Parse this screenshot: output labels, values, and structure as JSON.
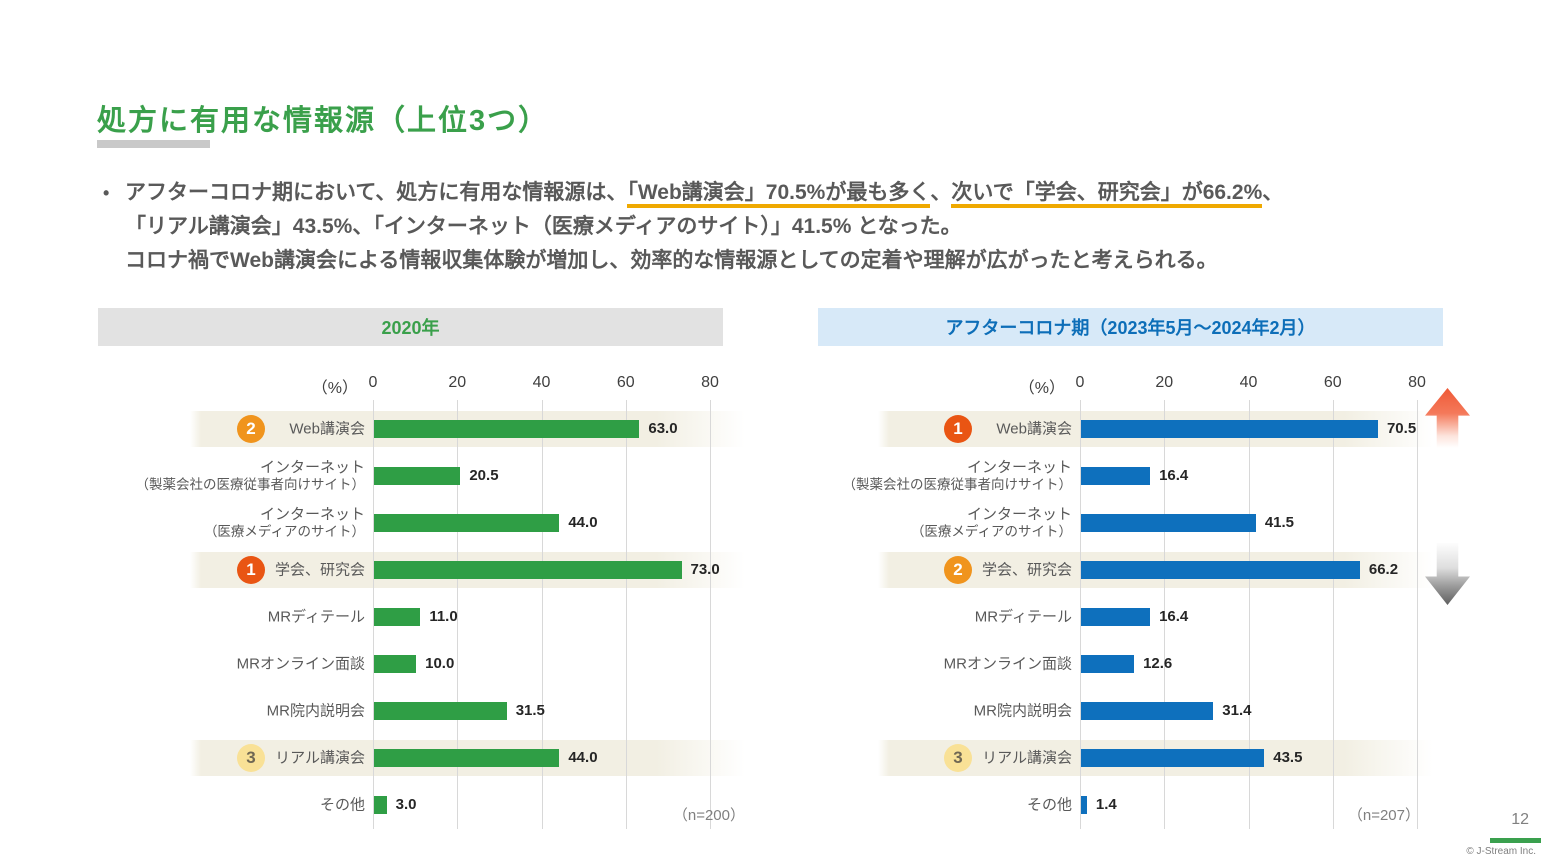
{
  "title": "処方に有用な情報源（上位3つ）",
  "bullet": {
    "line1_segments": [
      {
        "text": "アフターコロナ期において、処方に有用な情報源は、",
        "u": false
      },
      {
        "text": "「Web講演会」70.5%が最も多く",
        "u": true
      },
      {
        "text": "、",
        "u": false
      },
      {
        "text": "次いで「学会、研究会」が66.2%",
        "u": true
      },
      {
        "text": "、",
        "u": false
      }
    ],
    "line2": "「リアル講演会」43.5%、「インターネット（医療メディアのサイト）」41.5% となった。",
    "line3": "コロナ禍でWeb講演会による情報収集体験が増加し、効率的な情報源としての定着や理解が広がったと考えられる。"
  },
  "chart_data": [
    {
      "type": "bar",
      "orientation": "horizontal",
      "title": "2020年",
      "unit_label": "（%）",
      "x_ticks": [
        0,
        20,
        40,
        60,
        80
      ],
      "xlim": [
        0,
        100
      ],
      "grid": true,
      "categories": [
        "Web講演会",
        "インターネット\n（製薬会社の医療従事者向けサイト）",
        "インターネット\n（医療メディアのサイト）",
        "学会、研究会",
        "MRディテール",
        "MRオンライン面談",
        "MR院内説明会",
        "リアル講演会",
        "その他"
      ],
      "values": [
        63.0,
        20.5,
        44.0,
        73.0,
        11.0,
        10.0,
        31.5,
        44.0,
        3.0
      ],
      "ranks": {
        "0": 2,
        "3": 1,
        "7": 3
      },
      "n_label": "（n=200）",
      "bar_color": "#2f9e45",
      "header_bg": "#e2e2e2",
      "header_fg": "#3aa04b"
    },
    {
      "type": "bar",
      "orientation": "horizontal",
      "title": "アフターコロナ期（2023年5月～2024年2月）",
      "unit_label": "（%）",
      "x_ticks": [
        0,
        20,
        40,
        60,
        80
      ],
      "xlim": [
        0,
        100
      ],
      "grid": true,
      "categories": [
        "Web講演会",
        "インターネット\n（製薬会社の医療従事者向けサイト）",
        "インターネット\n（医療メディアのサイト）",
        "学会、研究会",
        "MRディテール",
        "MRオンライン面談",
        "MR院内説明会",
        "リアル講演会",
        "その他"
      ],
      "values": [
        70.5,
        16.4,
        41.5,
        66.2,
        16.4,
        12.6,
        31.4,
        43.5,
        1.4
      ],
      "ranks": {
        "0": 1,
        "3": 2,
        "7": 3
      },
      "n_label": "（n=207）",
      "bar_color": "#0e70bd",
      "header_bg": "#d7e9f8",
      "header_fg": "#0d6eb8"
    }
  ],
  "rank_badges": {
    "1": {
      "bg": "#e95513",
      "fg": "#ffffff"
    },
    "2": {
      "bg": "#f0941d",
      "fg": "#ffffff"
    },
    "3": {
      "bg": "#f9e196",
      "fg": "#6f6753"
    }
  },
  "footer": {
    "page": "12",
    "copyright": "© J-Stream Inc."
  },
  "colors": {
    "title_green": "#3aa04b",
    "body_text": "#595959",
    "highlight_underline": "#efa900",
    "row_highlight": "#f2efe3",
    "gridline": "#d8d8d8",
    "value_text": "#262626",
    "n_label_text": "#7f7f7f",
    "arrow_up": "#ef5936",
    "arrow_down": "#5f5f5f",
    "footer_bar": "#3aa04e"
  }
}
